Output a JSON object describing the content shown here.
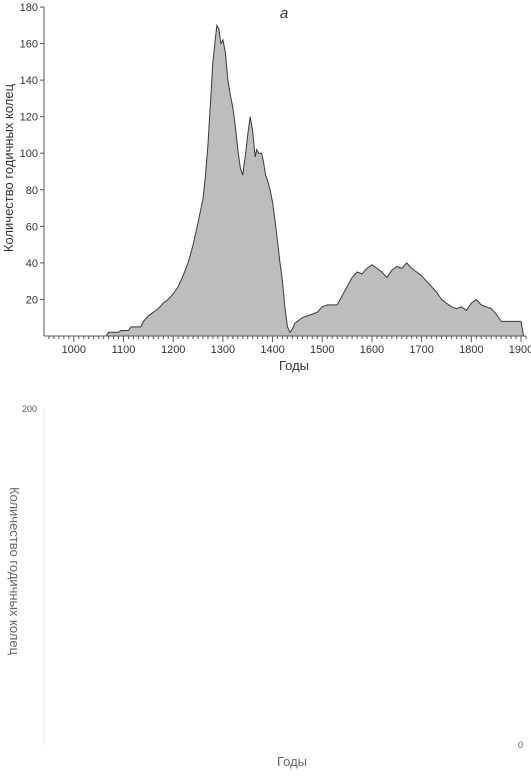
{
  "colors": {
    "fill": "#bdbdbd",
    "stroke": "#3a3a3a",
    "axis": "#555555"
  },
  "chart_data": [
    {
      "type": "area",
      "panel_label": "a",
      "title": "",
      "xlabel": "Годы",
      "ylabel": "Количество годичных колец",
      "xlim": [
        940,
        1910
      ],
      "ylim": [
        0,
        180
      ],
      "x_ticks": [
        1000,
        1100,
        1200,
        1300,
        1400,
        1500,
        1600,
        1700,
        1800,
        1900
      ],
      "x_tick_labels": [
        "1000",
        "1100",
        "1200",
        "1300",
        "1400",
        "1500",
        "1600",
        "1700",
        "1800",
        "1900"
      ],
      "y_ticks": [
        20,
        40,
        60,
        80,
        100,
        120,
        140,
        160,
        180
      ],
      "y_tick_labels": [
        "20",
        "40",
        "60",
        "80",
        "100",
        "120",
        "140",
        "160",
        "180"
      ],
      "grid": false,
      "legend": "none",
      "series": [
        {
          "x": [
            1065,
            1070,
            1090,
            1095,
            1110,
            1115,
            1135,
            1140,
            1150,
            1160,
            1170,
            1180,
            1190,
            1200,
            1210,
            1220,
            1230,
            1240,
            1250,
            1260,
            1265,
            1270,
            1275,
            1280,
            1285,
            1288,
            1292,
            1296,
            1300,
            1305,
            1310,
            1315,
            1320,
            1325,
            1330,
            1335,
            1340,
            1343,
            1346,
            1350,
            1355,
            1360,
            1365,
            1368,
            1372,
            1378,
            1382,
            1386,
            1390,
            1395,
            1400,
            1405,
            1410,
            1415,
            1420,
            1425,
            1430,
            1435,
            1440,
            1445,
            1450,
            1460,
            1470,
            1480,
            1490,
            1500,
            1510,
            1520,
            1530,
            1540,
            1550,
            1560,
            1570,
            1580,
            1590,
            1600,
            1610,
            1620,
            1630,
            1640,
            1650,
            1660,
            1670,
            1680,
            1690,
            1700,
            1710,
            1720,
            1730,
            1740,
            1750,
            1760,
            1770,
            1780,
            1790,
            1800,
            1810,
            1820,
            1830,
            1840,
            1850,
            1860,
            1870,
            1880,
            1890,
            1900,
            1905
          ],
          "y": [
            0,
            2,
            2,
            3,
            3,
            5,
            5,
            8,
            11,
            13,
            15,
            18,
            20,
            23,
            27,
            33,
            40,
            50,
            62,
            75,
            88,
            105,
            128,
            150,
            163,
            170,
            168,
            160,
            162,
            155,
            140,
            132,
            125,
            115,
            102,
            92,
            88,
            95,
            100,
            110,
            120,
            112,
            98,
            102,
            100,
            100,
            95,
            88,
            85,
            80,
            73,
            63,
            52,
            40,
            30,
            15,
            5,
            2,
            4,
            7,
            8,
            10,
            11,
            12,
            13,
            16,
            17,
            17,
            17,
            22,
            27,
            32,
            35,
            34,
            37,
            39,
            37,
            35,
            32,
            36,
            38,
            37,
            40,
            37,
            35,
            33,
            30,
            27,
            24,
            20,
            18,
            16,
            15,
            16,
            14,
            18,
            20,
            17,
            16,
            15,
            12,
            8,
            8,
            8,
            8,
            8,
            0
          ]
        }
      ]
    },
    {
      "type": "area",
      "panel_label": "",
      "title": "",
      "xlabel": "Годы",
      "ylabel": "Количество годичных колец",
      "y_tick_labels": [
        "200"
      ],
      "x_tick_labels": [
        "0"
      ],
      "series": []
    }
  ]
}
